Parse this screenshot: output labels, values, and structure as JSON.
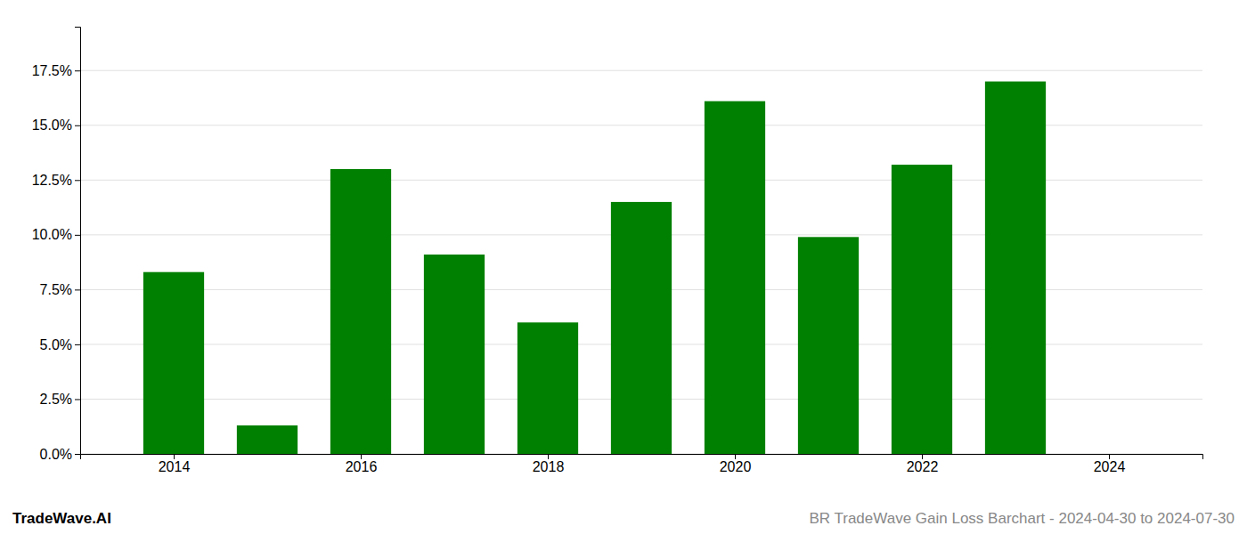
{
  "chart_data": {
    "type": "bar",
    "x": [
      2014,
      2015,
      2016,
      2017,
      2018,
      2019,
      2020,
      2021,
      2022,
      2023
    ],
    "values": [
      0.083,
      0.013,
      0.13,
      0.091,
      0.06,
      0.115,
      0.161,
      0.099,
      0.132,
      0.17
    ],
    "color": "#008000",
    "xlim": [
      2013.0,
      2025.0
    ],
    "xticks": [
      2014,
      2016,
      2018,
      2020,
      2022,
      2024
    ],
    "ylim": [
      0,
      0.195
    ],
    "yticks": [
      {
        "value": 0.0,
        "label": "0.0%"
      },
      {
        "value": 0.025,
        "label": "2.5%"
      },
      {
        "value": 0.05,
        "label": "5.0%"
      },
      {
        "value": 0.075,
        "label": "7.5%"
      },
      {
        "value": 0.1,
        "label": "10.0%"
      },
      {
        "value": 0.125,
        "label": "12.5%"
      },
      {
        "value": 0.15,
        "label": "15.0%"
      },
      {
        "value": 0.175,
        "label": "17.5%"
      }
    ],
    "grid": true,
    "annotations": [
      "TradeWave.AI",
      "BR TradeWave Gain Loss Barchart - 2024-04-30 to 2024-07-30"
    ]
  }
}
